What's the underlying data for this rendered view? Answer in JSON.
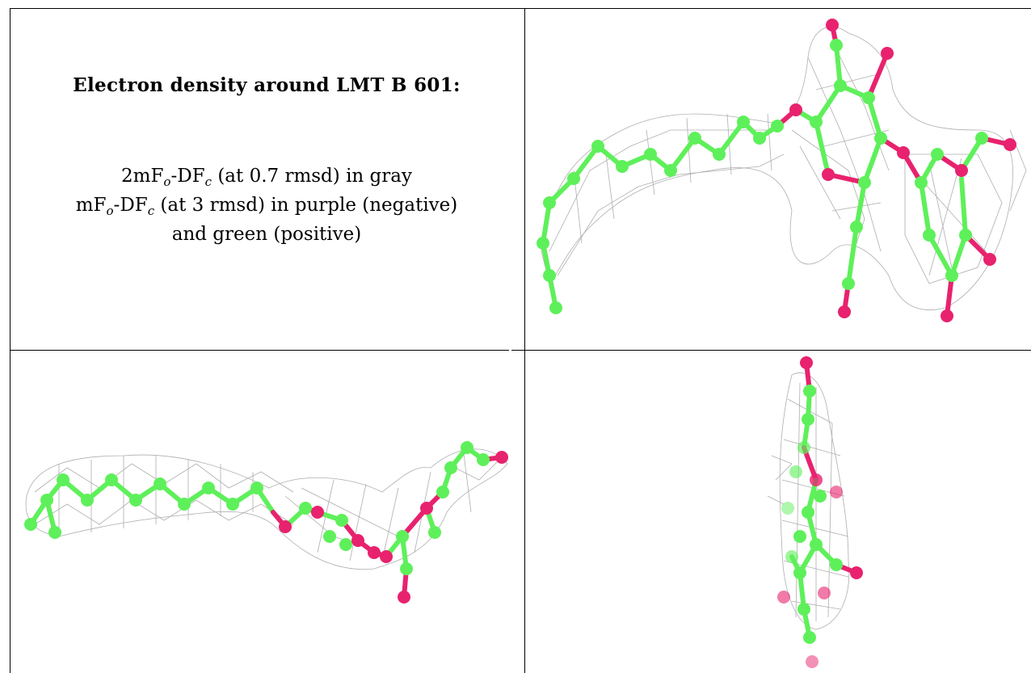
{
  "legend": {
    "title": "Electron density around LMT B 601:",
    "line1": {
      "a": "2mF",
      "a_sub": "o",
      "b": "-DF",
      "b_sub": "c",
      "rest": " (at 0.7 rmsd) in gray"
    },
    "line2": {
      "a": "mF",
      "a_sub": "o",
      "b": "-DF",
      "b_sub": "c",
      "rest": " (at 3 rmsd) in purple (negative)"
    },
    "line3": "and green (positive)"
  },
  "colors": {
    "carbon": "#5ef05a",
    "oxygen": "#e8226e",
    "mesh": "#9a9a9a",
    "border": "#000000"
  }
}
